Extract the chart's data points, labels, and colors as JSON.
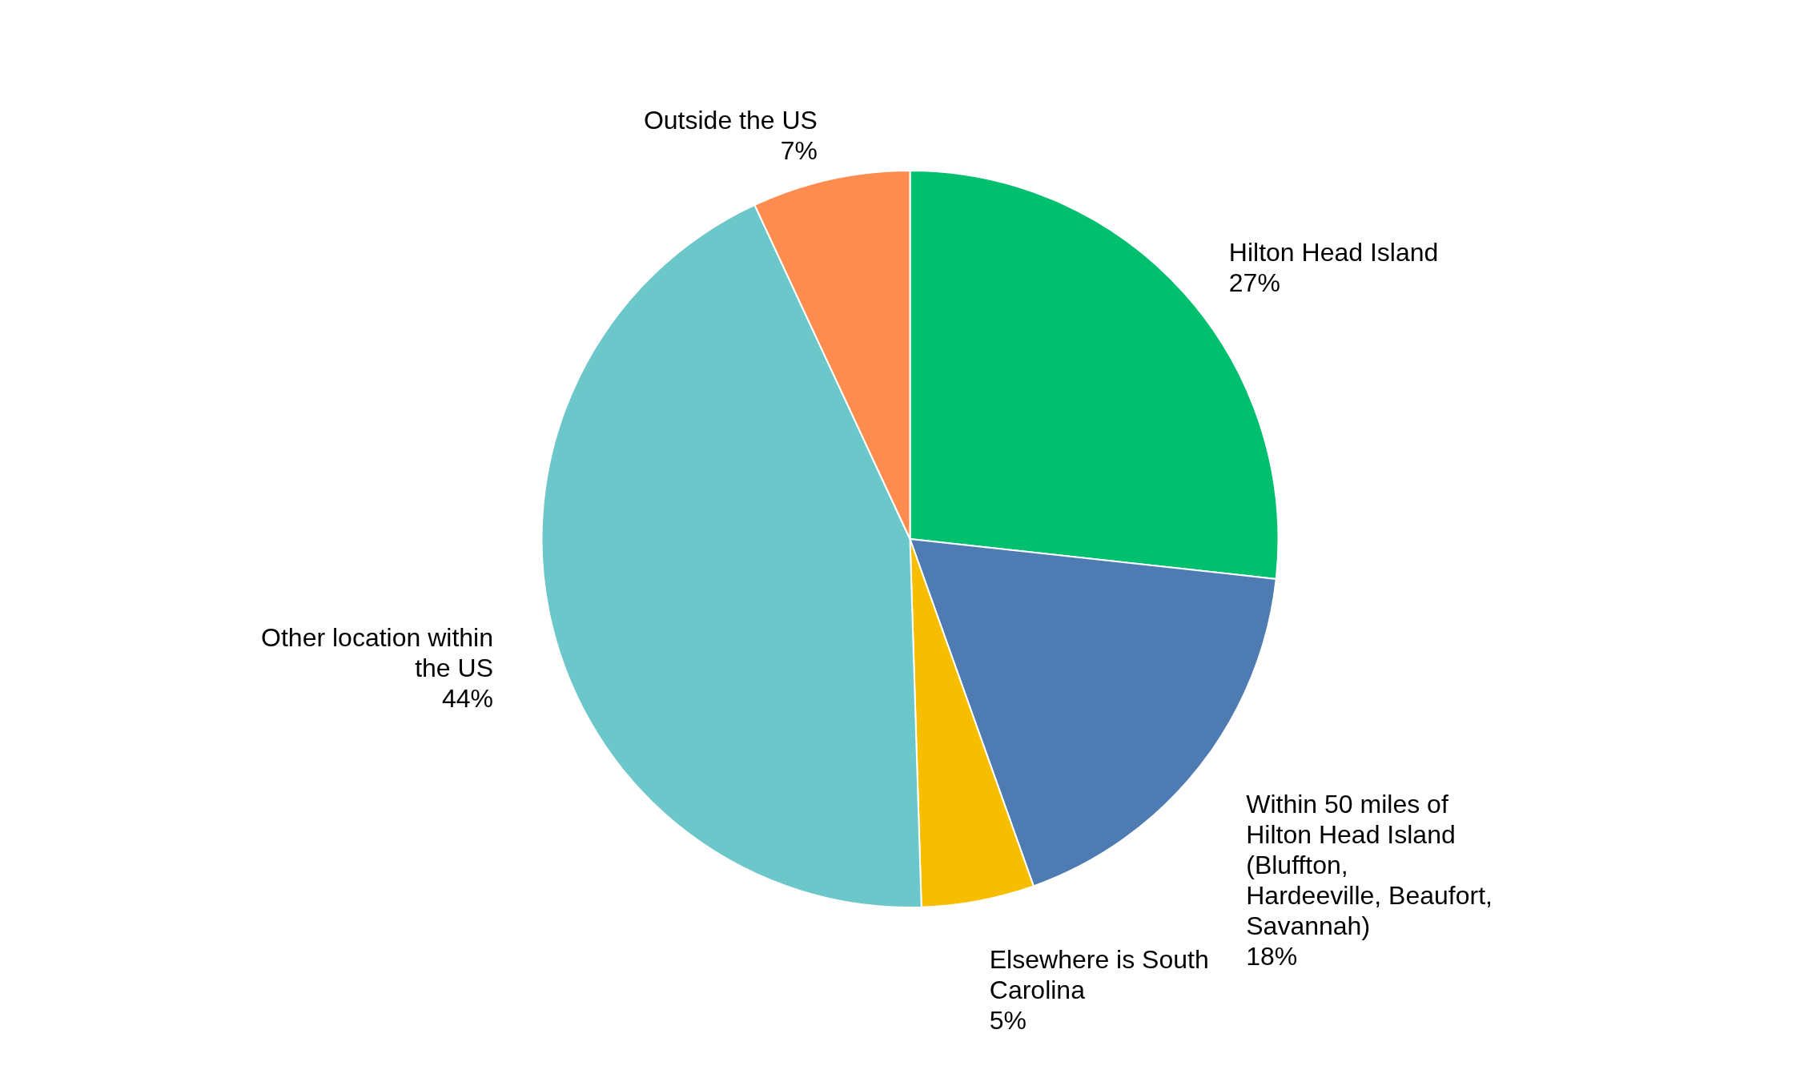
{
  "chart_data": {
    "type": "pie",
    "categories": [
      "Hilton Head Island",
      "Within 50 miles of Hilton Head Island (Bluffton, Hardeeville, Beaufort, Savannah)",
      "Elsewhere is South Carolina",
      "Other location within the US",
      "Outside the US"
    ],
    "values": [
      27,
      18,
      5,
      44,
      7
    ],
    "value_labels": [
      "27%",
      "18%",
      "5%",
      "44%",
      "7%"
    ],
    "colors": [
      "#00bf6f",
      "#4f7bb3",
      "#f7be00",
      "#6cc7cb",
      "#fe8c4f"
    ]
  }
}
